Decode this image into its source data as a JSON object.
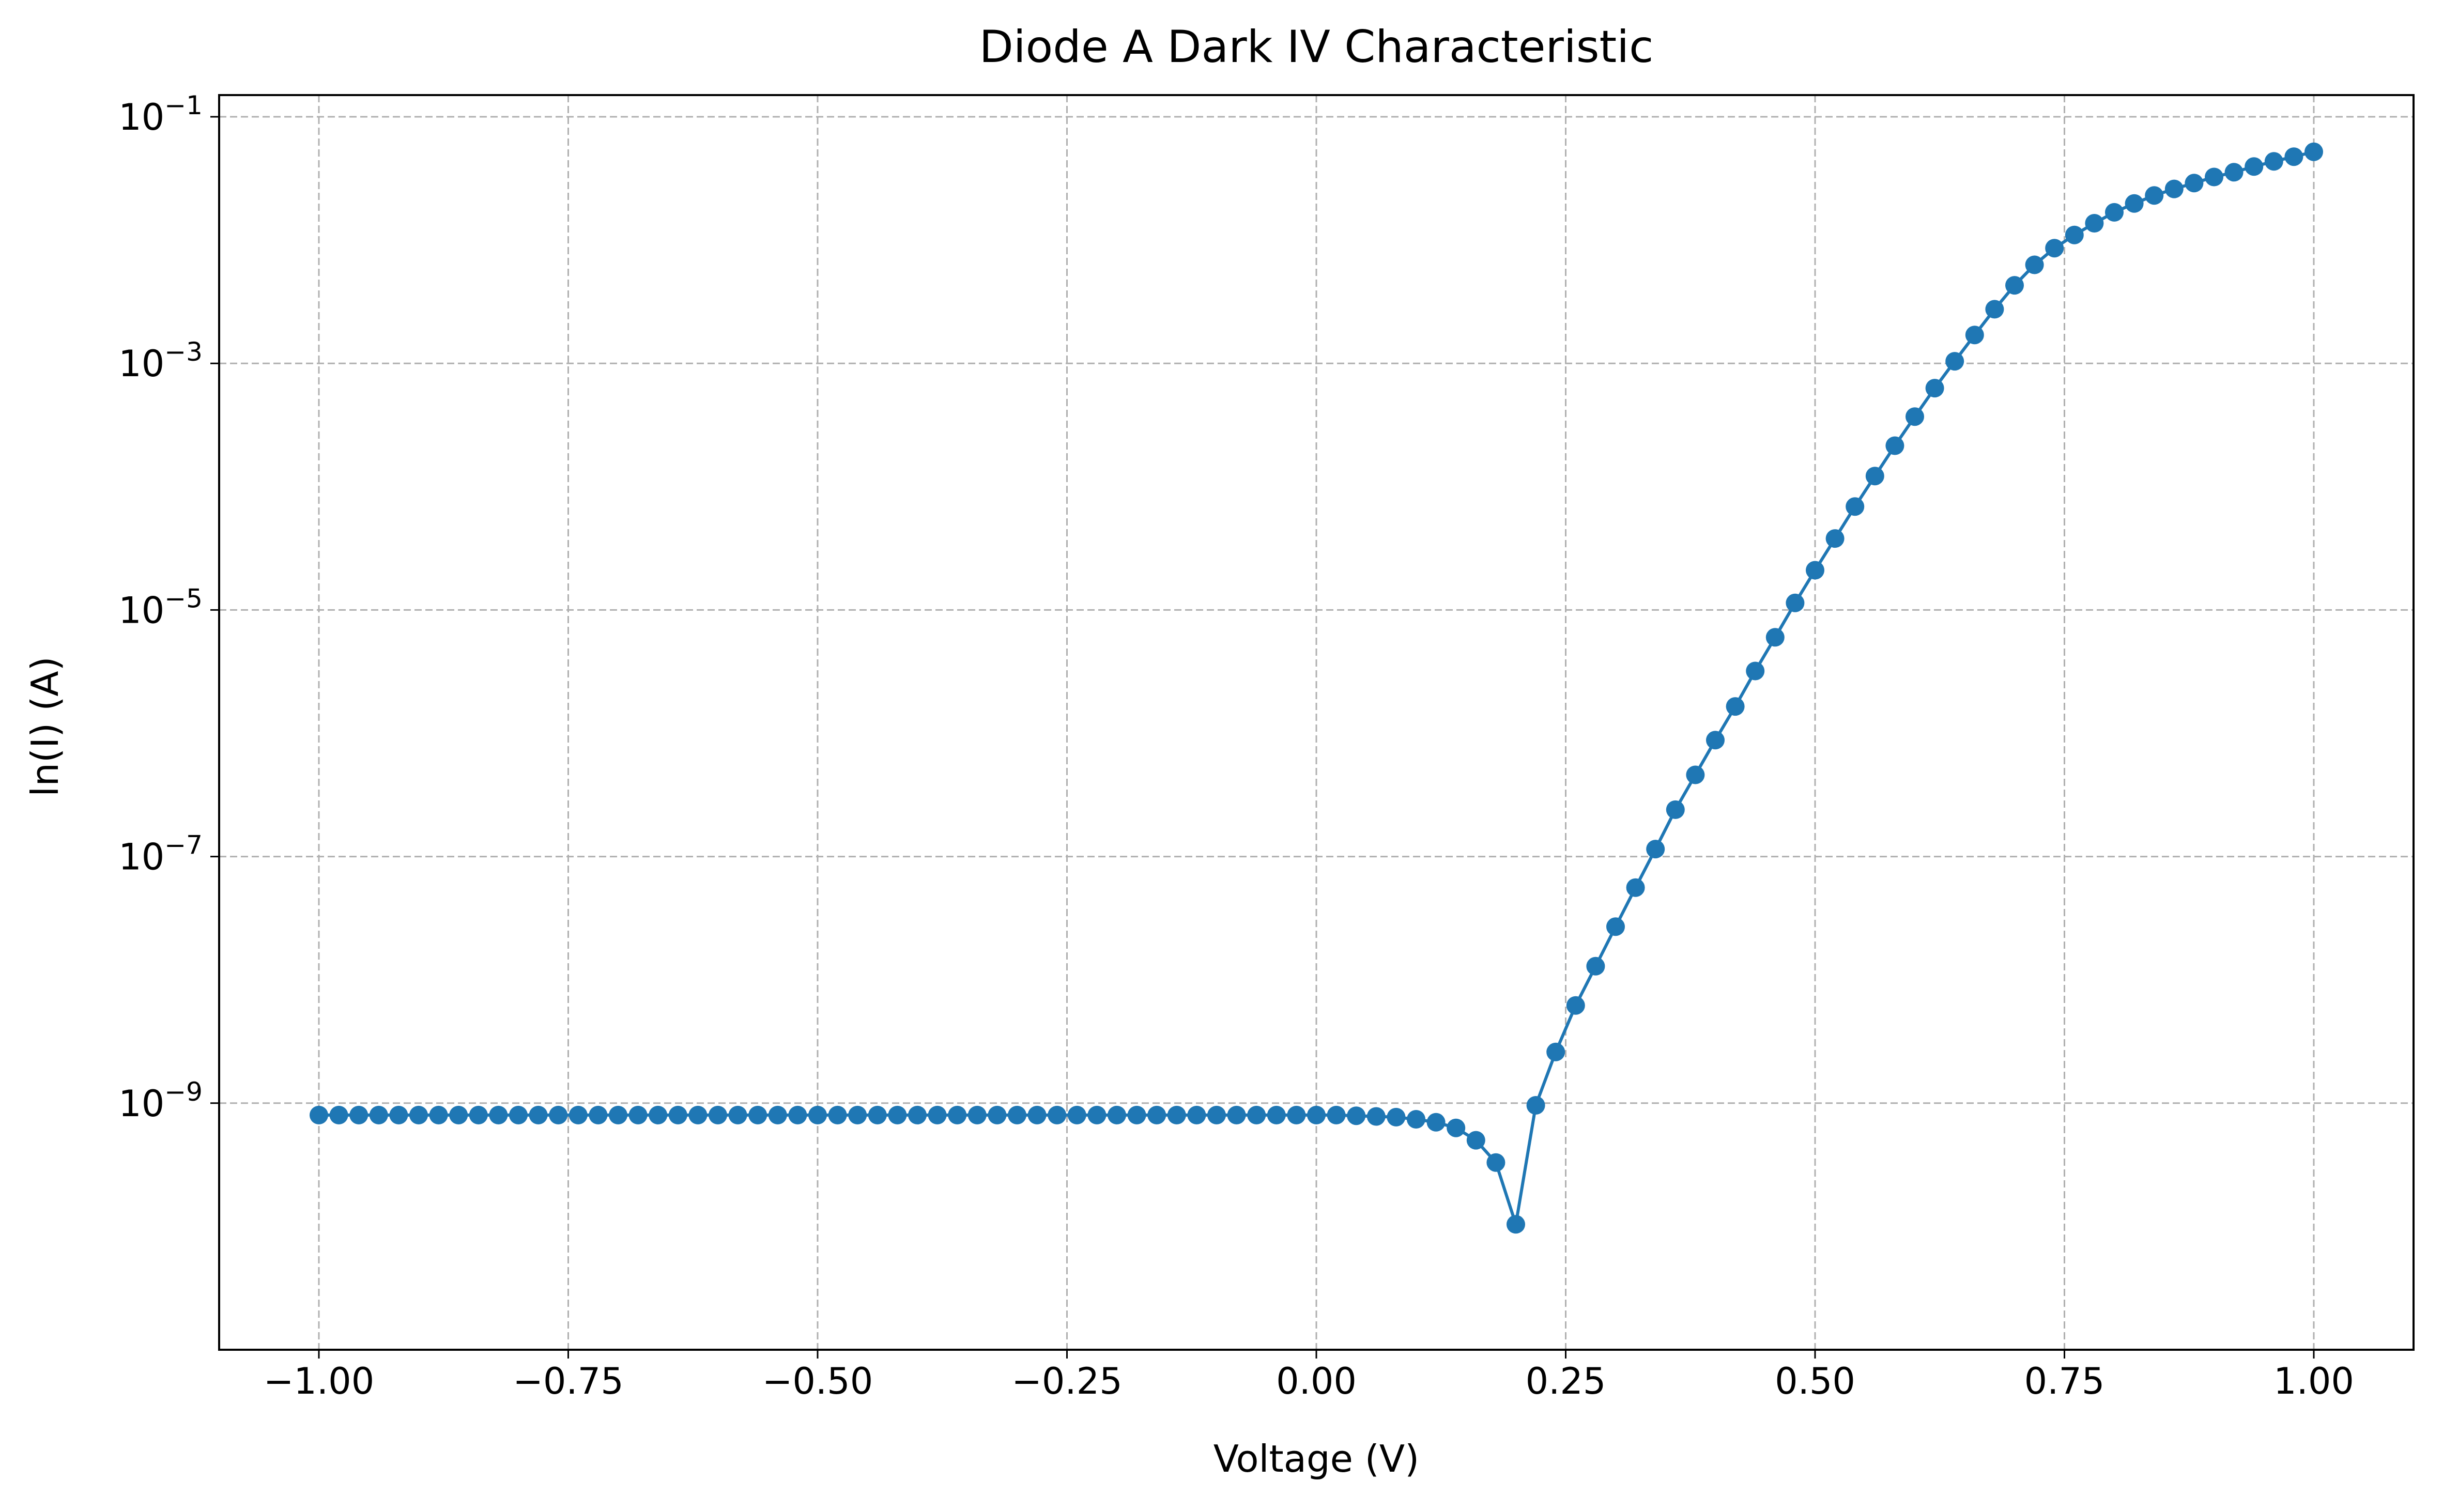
{
  "chart_data": {
    "type": "line",
    "title": "Diode A Dark IV Characteristic",
    "xlabel": "Voltage (V)",
    "ylabel": "ln(I) (A)",
    "xlim": [
      -1.1,
      1.1
    ],
    "ylim": [
      1e-11,
      0.15
    ],
    "yscale": "log",
    "grid": true,
    "line_color": "#1f77b4",
    "x_ticks": [
      {
        "value": -1.0,
        "label": "−1.00"
      },
      {
        "value": -0.75,
        "label": "−0.75"
      },
      {
        "value": -0.5,
        "label": "−0.50"
      },
      {
        "value": -0.25,
        "label": "−0.25"
      },
      {
        "value": 0.0,
        "label": "0.00"
      },
      {
        "value": 0.25,
        "label": "0.25"
      },
      {
        "value": 0.5,
        "label": "0.50"
      },
      {
        "value": 0.75,
        "label": "0.75"
      },
      {
        "value": 1.0,
        "label": "1.00"
      }
    ],
    "y_ticks": [
      {
        "value": 1e-09,
        "base": "10",
        "exp": "−9"
      },
      {
        "value": 1e-07,
        "base": "10",
        "exp": "−7"
      },
      {
        "value": 1e-05,
        "base": "10",
        "exp": "−5"
      },
      {
        "value": 0.001,
        "base": "10",
        "exp": "−3"
      },
      {
        "value": 0.1,
        "base": "10",
        "exp": "−1"
      }
    ],
    "series": [
      {
        "x": [
          -1.0,
          -0.98,
          -0.96,
          -0.94,
          -0.92,
          -0.9,
          -0.88,
          -0.86,
          -0.84,
          -0.82,
          -0.8,
          -0.78,
          -0.76,
          -0.74,
          -0.72,
          -0.7,
          -0.68,
          -0.66,
          -0.64,
          -0.62,
          -0.6,
          -0.58,
          -0.56,
          -0.54,
          -0.52,
          -0.5,
          -0.48,
          -0.46,
          -0.44,
          -0.42,
          -0.4,
          -0.38,
          -0.36,
          -0.34,
          -0.32,
          -0.3,
          -0.28,
          -0.26,
          -0.24,
          -0.22,
          -0.2,
          -0.18,
          -0.16,
          -0.14,
          -0.12,
          -0.1,
          -0.08,
          -0.06,
          -0.04,
          -0.02,
          0.0,
          0.02,
          0.04,
          0.06,
          0.08,
          0.1,
          0.12,
          0.14,
          0.16,
          0.18,
          0.2,
          0.22,
          0.24,
          0.26,
          0.28,
          0.3,
          0.32,
          0.34,
          0.36,
          0.38,
          0.4,
          0.42,
          0.44,
          0.46,
          0.48,
          0.5,
          0.52,
          0.54,
          0.56,
          0.58,
          0.6,
          0.62,
          0.64,
          0.66,
          0.68,
          0.7,
          0.72,
          0.74,
          0.76,
          0.78,
          0.8,
          0.82,
          0.84,
          0.86,
          0.88,
          0.9,
          0.92,
          0.94,
          0.96,
          0.98,
          1.0
        ],
        "y": [
          8e-10,
          8e-10,
          8e-10,
          8e-10,
          8e-10,
          8e-10,
          8e-10,
          8e-10,
          8e-10,
          8e-10,
          8e-10,
          8e-10,
          8e-10,
          8e-10,
          8e-10,
          8e-10,
          8e-10,
          8e-10,
          8e-10,
          8e-10,
          8e-10,
          8e-10,
          8e-10,
          8e-10,
          8e-10,
          8e-10,
          8e-10,
          8e-10,
          8e-10,
          8e-10,
          8e-10,
          8e-10,
          8e-10,
          8e-10,
          8e-10,
          8e-10,
          8e-10,
          8e-10,
          8e-10,
          8e-10,
          8e-10,
          8e-10,
          8e-10,
          8e-10,
          8e-10,
          8e-10,
          8e-10,
          8e-10,
          8e-10,
          8e-10,
          8e-10,
          8e-10,
          7.9e-10,
          7.8e-10,
          7.7e-10,
          7.4e-10,
          7e-10,
          6.3e-10,
          5e-10,
          3.3e-10,
          1.04e-10,
          9.6e-10,
          2.6e-09,
          6.2e-09,
          1.29e-08,
          2.7e-08,
          5.6e-08,
          1.15e-07,
          2.4e-07,
          4.6e-07,
          8.8e-07,
          1.65e-06,
          3.2e-06,
          6e-06,
          1.14e-05,
          2.1e-05,
          3.8e-05,
          6.9e-05,
          0.000122,
          0.000215,
          0.00037,
          0.00063,
          0.00104,
          0.0017,
          0.00275,
          0.0043,
          0.0063,
          0.0086,
          0.011,
          0.0137,
          0.0168,
          0.0198,
          0.023,
          0.026,
          0.029,
          0.0325,
          0.0355,
          0.0395,
          0.0435,
          0.0475,
          0.052
        ]
      }
    ]
  }
}
